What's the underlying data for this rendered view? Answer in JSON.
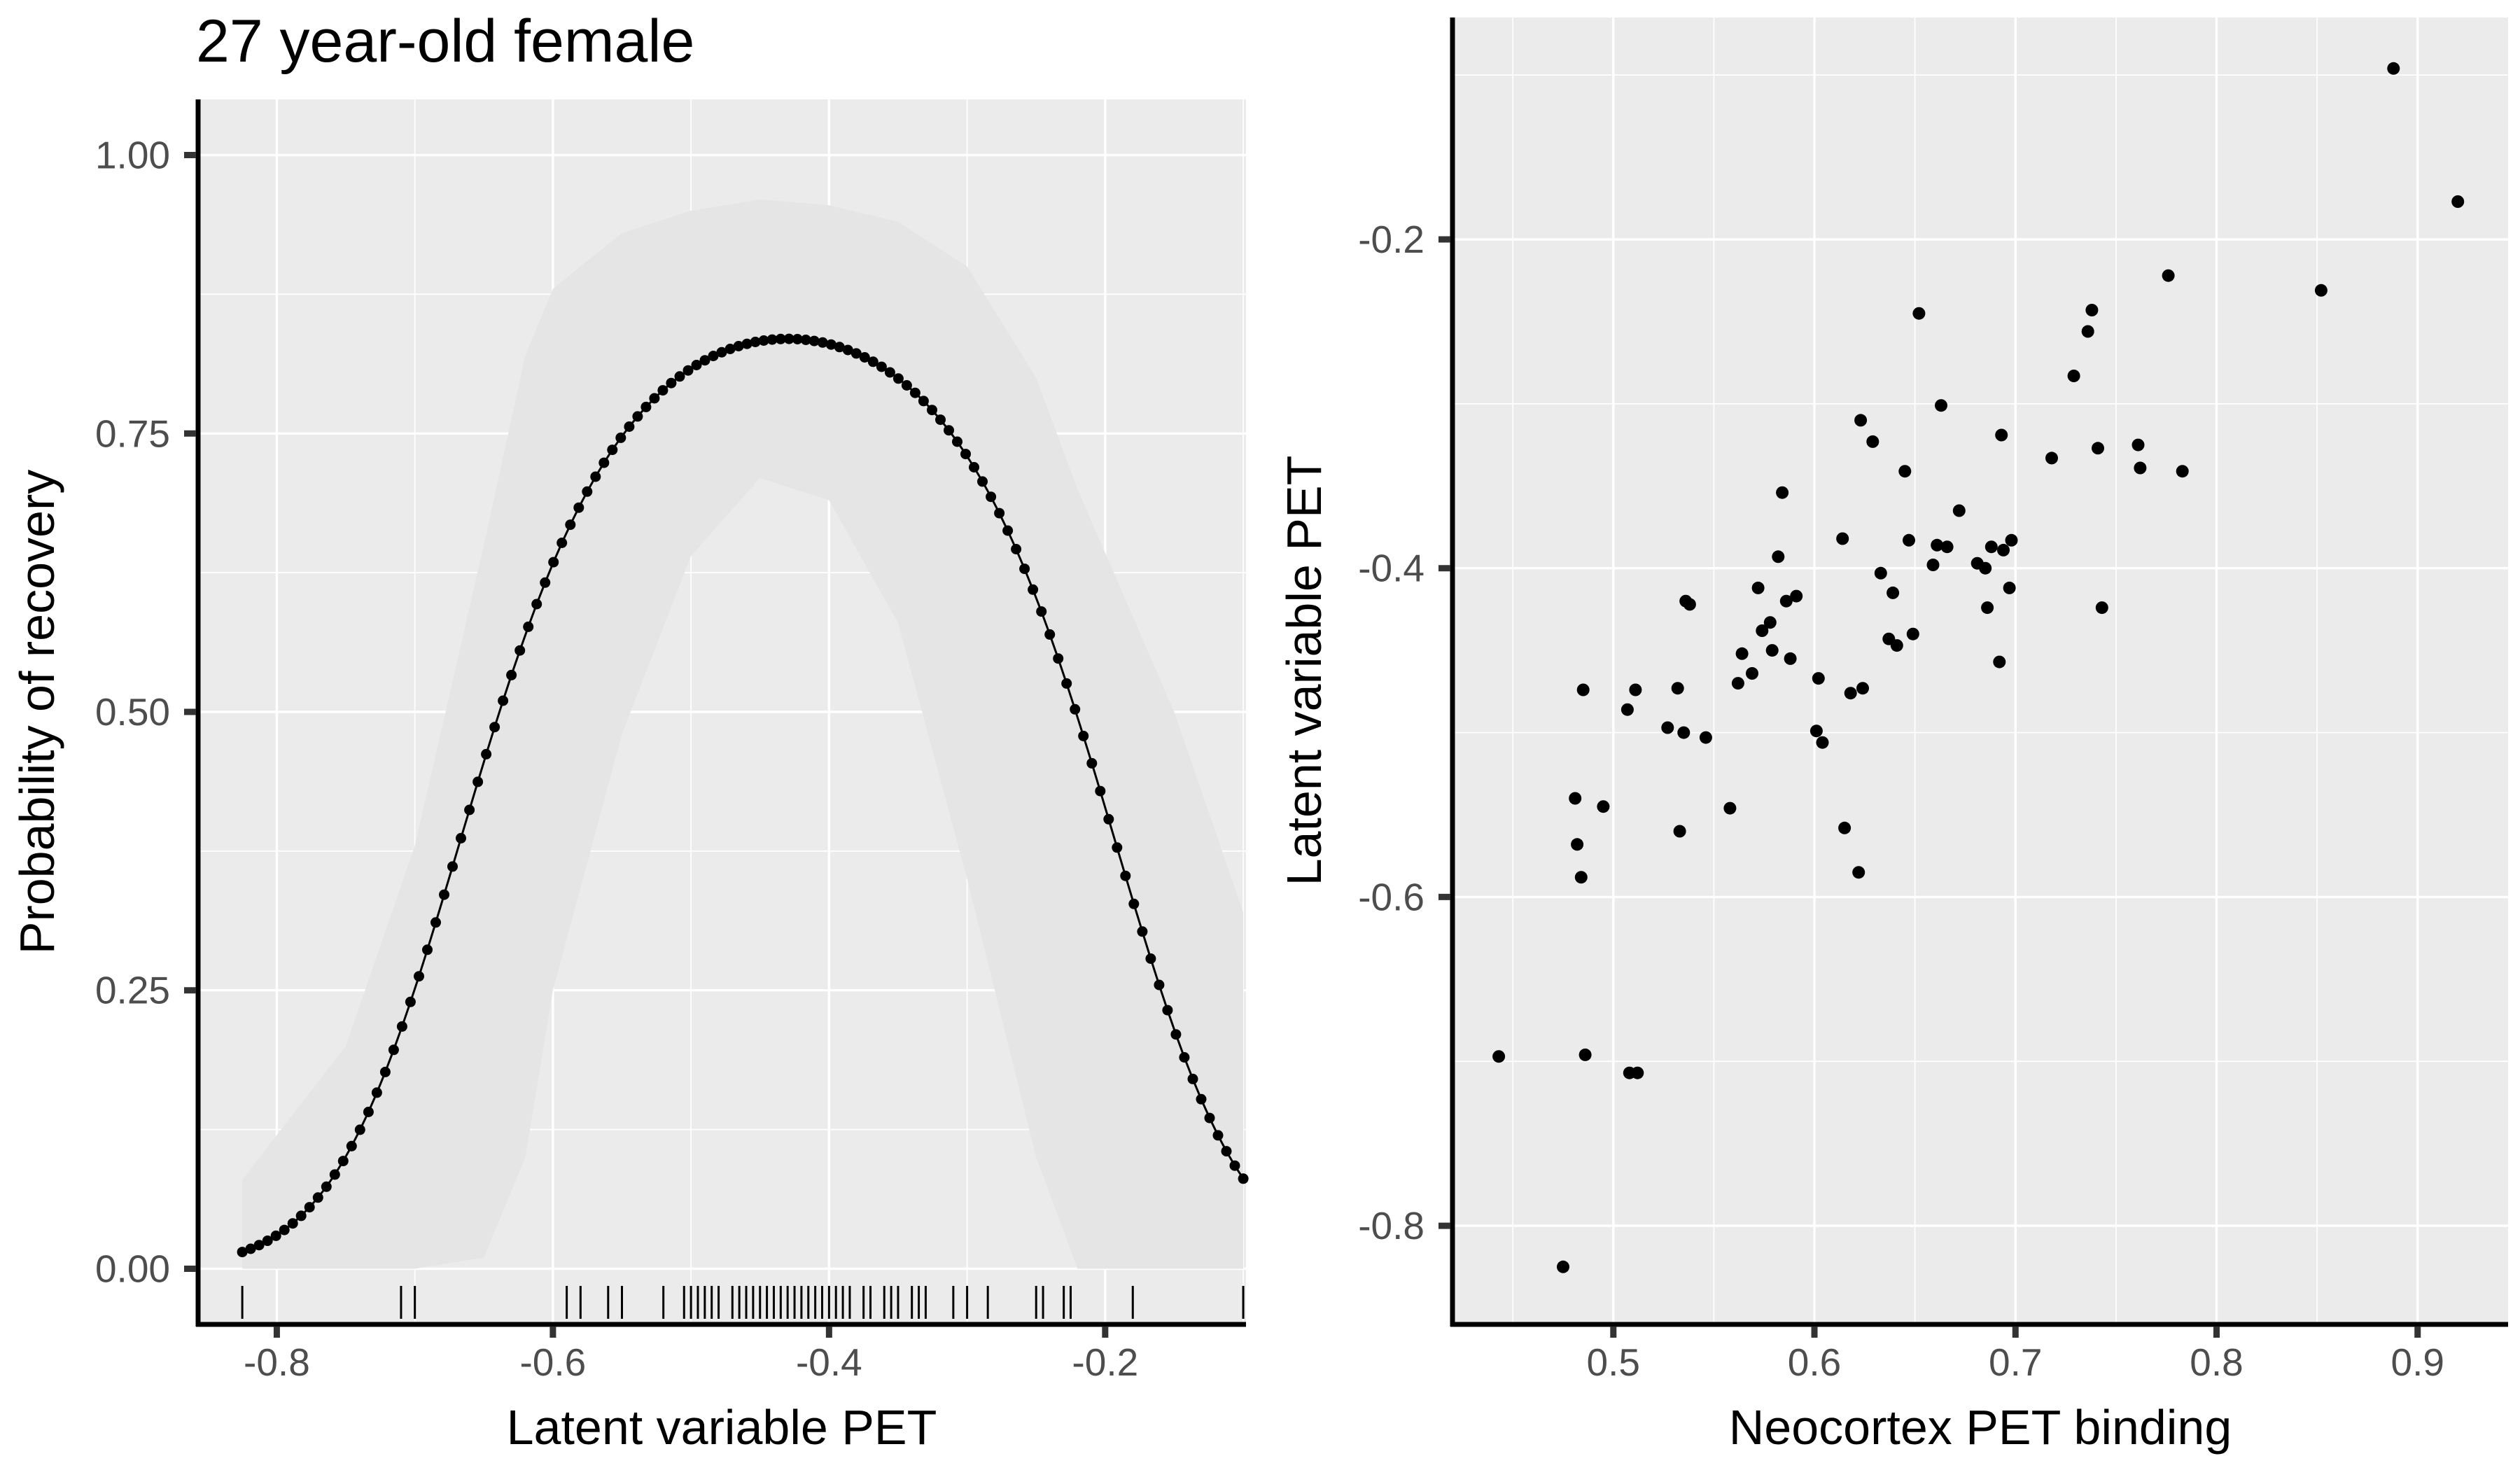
{
  "chart_data": [
    {
      "type": "line",
      "title": "27 year-old female",
      "xlabel": "Latent variable PET",
      "ylabel": "Probability of recovery",
      "xlim": [
        -0.857,
        -0.098
      ],
      "ylim": [
        -0.05,
        1.05
      ],
      "x_ticks": [
        -0.8,
        -0.6,
        -0.4,
        -0.2
      ],
      "x_tick_labels": [
        "-0.8",
        "-0.6",
        "-0.4",
        "-0.2"
      ],
      "y_ticks": [
        0,
        0.25,
        0.5,
        0.75,
        1
      ],
      "y_tick_labels": [
        "0.00",
        "0.25",
        "0.50",
        "0.75",
        "1.00"
      ],
      "grid": true,
      "curve_shape": "logistic-quadratic",
      "curve_params": {
        "x_start": -0.825,
        "x_end": -0.1,
        "n_points": 120,
        "peak_x": -0.43,
        "peak_prob": 0.835,
        "prob_at_start": 0.015
      },
      "ribbon": [
        {
          "x": -0.825,
          "upper": 0.08,
          "lower": 0.0
        },
        {
          "x": -0.75,
          "upper": 0.2,
          "lower": 0.0
        },
        {
          "x": -0.7,
          "upper": 0.38,
          "lower": 0.0
        },
        {
          "x": -0.65,
          "upper": 0.65,
          "lower": 0.01
        },
        {
          "x": -0.62,
          "upper": 0.82,
          "lower": 0.1
        },
        {
          "x": -0.6,
          "upper": 0.88,
          "lower": 0.25
        },
        {
          "x": -0.55,
          "upper": 0.93,
          "lower": 0.48
        },
        {
          "x": -0.5,
          "upper": 0.95,
          "lower": 0.64
        },
        {
          "x": -0.45,
          "upper": 0.96,
          "lower": 0.71
        },
        {
          "x": -0.4,
          "upper": 0.955,
          "lower": 0.69
        },
        {
          "x": -0.35,
          "upper": 0.94,
          "lower": 0.58
        },
        {
          "x": -0.3,
          "upper": 0.9,
          "lower": 0.35
        },
        {
          "x": -0.25,
          "upper": 0.8,
          "lower": 0.1
        },
        {
          "x": -0.22,
          "upper": 0.7,
          "lower": 0.0
        },
        {
          "x": -0.15,
          "upper": 0.5,
          "lower": 0.0
        },
        {
          "x": -0.1,
          "upper": 0.32,
          "lower": 0.0
        }
      ],
      "rug": [
        -0.825,
        -0.71,
        -0.7,
        -0.59,
        -0.58,
        -0.56,
        -0.55,
        -0.52,
        -0.505,
        -0.5,
        -0.495,
        -0.49,
        -0.485,
        -0.48,
        -0.47,
        -0.465,
        -0.46,
        -0.455,
        -0.45,
        -0.445,
        -0.44,
        -0.435,
        -0.43,
        -0.425,
        -0.42,
        -0.415,
        -0.41,
        -0.405,
        -0.4,
        -0.395,
        -0.39,
        -0.385,
        -0.375,
        -0.37,
        -0.36,
        -0.355,
        -0.35,
        -0.34,
        -0.335,
        -0.33,
        -0.31,
        -0.3,
        -0.285,
        -0.25,
        -0.245,
        -0.23,
        -0.225,
        -0.18,
        -0.1
      ]
    },
    {
      "type": "scatter",
      "xlabel": "Neocortex PET binding",
      "ylabel": "Latent variable PET",
      "xlim": [
        0.42,
        0.945
      ],
      "ylim": [
        -0.86,
        -0.065
      ],
      "x_ticks": [
        0.5,
        0.6,
        0.7,
        0.8,
        0.9
      ],
      "x_tick_labels": [
        "0.5",
        "0.6",
        "0.7",
        "0.8",
        "0.9"
      ],
      "y_ticks": [
        -0.8,
        -0.6,
        -0.4,
        -0.2
      ],
      "y_tick_labels": [
        "-0.8",
        "-0.6",
        "-0.4",
        "-0.2"
      ],
      "grid": true,
      "points": [
        [
          0.443,
          -0.697
        ],
        [
          0.475,
          -0.825
        ],
        [
          0.481,
          -0.54
        ],
        [
          0.482,
          -0.568
        ],
        [
          0.484,
          -0.588
        ],
        [
          0.485,
          -0.474
        ],
        [
          0.486,
          -0.696
        ],
        [
          0.495,
          -0.545
        ],
        [
          0.507,
          -0.486
        ],
        [
          0.508,
          -0.707
        ],
        [
          0.511,
          -0.474
        ],
        [
          0.512,
          -0.707
        ],
        [
          0.527,
          -0.497
        ],
        [
          0.532,
          -0.473
        ],
        [
          0.533,
          -0.56
        ],
        [
          0.535,
          -0.5
        ],
        [
          0.536,
          -0.42
        ],
        [
          0.538,
          -0.422
        ],
        [
          0.546,
          -0.503
        ],
        [
          0.558,
          -0.546
        ],
        [
          0.562,
          -0.47
        ],
        [
          0.564,
          -0.452
        ],
        [
          0.569,
          -0.464
        ],
        [
          0.572,
          -0.412
        ],
        [
          0.574,
          -0.438
        ],
        [
          0.578,
          -0.433
        ],
        [
          0.579,
          -0.45
        ],
        [
          0.582,
          -0.393
        ],
        [
          0.584,
          -0.354
        ],
        [
          0.586,
          -0.42
        ],
        [
          0.588,
          -0.455
        ],
        [
          0.591,
          -0.417
        ],
        [
          0.601,
          -0.499
        ],
        [
          0.602,
          -0.467
        ],
        [
          0.604,
          -0.506
        ],
        [
          0.614,
          -0.382
        ],
        [
          0.615,
          -0.558
        ],
        [
          0.618,
          -0.476
        ],
        [
          0.622,
          -0.585
        ],
        [
          0.623,
          -0.31
        ],
        [
          0.624,
          -0.473
        ],
        [
          0.629,
          -0.323
        ],
        [
          0.633,
          -0.403
        ],
        [
          0.637,
          -0.443
        ],
        [
          0.639,
          -0.415
        ],
        [
          0.641,
          -0.447
        ],
        [
          0.645,
          -0.341
        ],
        [
          0.647,
          -0.383
        ],
        [
          0.649,
          -0.44
        ],
        [
          0.652,
          -0.245
        ],
        [
          0.659,
          -0.398
        ],
        [
          0.661,
          -0.386
        ],
        [
          0.663,
          -0.301
        ],
        [
          0.666,
          -0.387
        ],
        [
          0.672,
          -0.365
        ],
        [
          0.681,
          -0.397
        ],
        [
          0.685,
          -0.4
        ],
        [
          0.686,
          -0.424
        ],
        [
          0.688,
          -0.387
        ],
        [
          0.692,
          -0.457
        ],
        [
          0.693,
          -0.319
        ],
        [
          0.694,
          -0.389
        ],
        [
          0.697,
          -0.412
        ],
        [
          0.698,
          -0.383
        ],
        [
          0.718,
          -0.333
        ],
        [
          0.729,
          -0.283
        ],
        [
          0.736,
          -0.256
        ],
        [
          0.738,
          -0.243
        ],
        [
          0.741,
          -0.327
        ],
        [
          0.743,
          -0.424
        ],
        [
          0.761,
          -0.325
        ],
        [
          0.762,
          -0.339
        ],
        [
          0.776,
          -0.222
        ],
        [
          0.783,
          -0.341
        ],
        [
          0.852,
          -0.231
        ],
        [
          0.888,
          -0.096
        ],
        [
          0.92,
          -0.177
        ]
      ]
    }
  ]
}
